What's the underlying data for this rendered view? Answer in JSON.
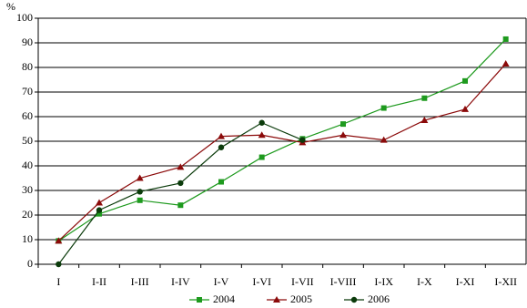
{
  "chart_data": {
    "type": "line",
    "y_label": "%",
    "categories": [
      "I",
      "I-II",
      "I-III",
      "I-IV",
      "I-V",
      "I-VI",
      "I-VII",
      "I-VIII",
      "I-IX",
      "I-X",
      "I-XI",
      "I-XII"
    ],
    "series": [
      {
        "name": "2004",
        "color": "#1e9a1e",
        "marker": "square",
        "values": [
          9.5,
          20.5,
          26,
          24,
          33.5,
          43.5,
          51,
          57,
          63.5,
          67.5,
          74.5,
          91.5
        ]
      },
      {
        "name": "2005",
        "color": "#8b0a0a",
        "marker": "triangle",
        "values": [
          9.5,
          25,
          35,
          39.5,
          52,
          52.5,
          49.5,
          52.5,
          50.5,
          58.5,
          63,
          81.5
        ]
      },
      {
        "name": "2006",
        "color": "#0b3b0b",
        "marker": "circle",
        "values": [
          0,
          22,
          29.5,
          33,
          47.5,
          57.5,
          50.5,
          null,
          null,
          null,
          null,
          null
        ]
      }
    ],
    "ylim": [
      0,
      100
    ],
    "yticks": [
      0,
      10,
      20,
      30,
      40,
      50,
      60,
      70,
      80,
      90,
      100
    ],
    "grid": true,
    "legend": "bottom"
  }
}
